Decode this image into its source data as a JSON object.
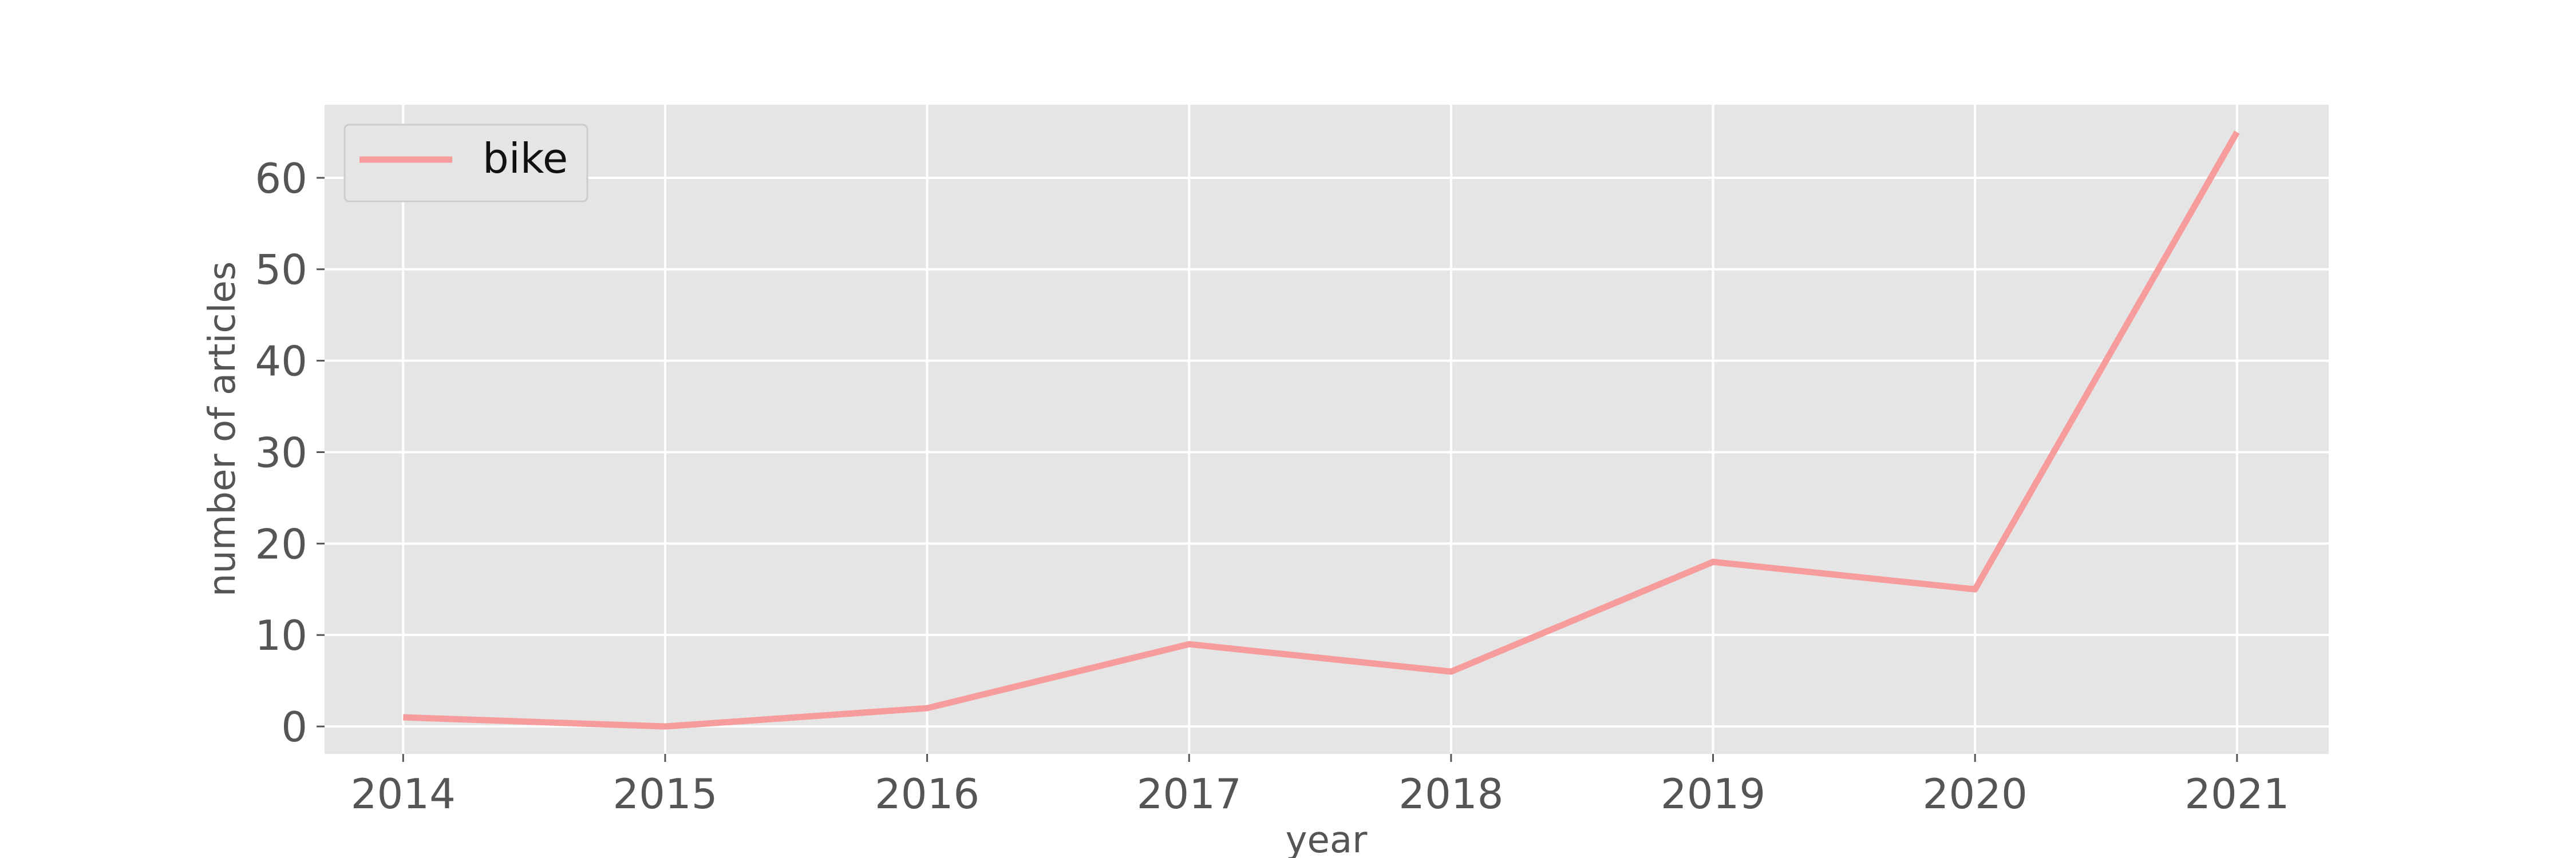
{
  "chart_data": {
    "type": "line",
    "xlabel": "year",
    "ylabel": "number of articles",
    "x": [
      2014,
      2015,
      2016,
      2017,
      2018,
      2019,
      2020,
      2021
    ],
    "series": [
      {
        "name": "bike",
        "values": [
          1,
          0,
          2,
          9,
          6,
          18,
          15,
          65
        ],
        "color": "#f79c9c"
      }
    ],
    "xlim": [
      2013.7,
      2021.35
    ],
    "ylim": [
      -3,
      68
    ],
    "yticks": [
      0,
      10,
      20,
      30,
      40,
      50,
      60
    ],
    "xticks": [
      2014,
      2015,
      2016,
      2017,
      2018,
      2019,
      2020,
      2021
    ],
    "grid": true,
    "legend_position": "top-left",
    "background": "#e5e5e5",
    "grid_color": "#ffffff"
  }
}
